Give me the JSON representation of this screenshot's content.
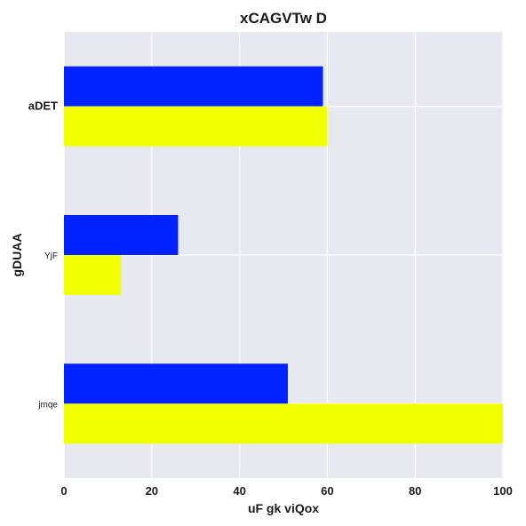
{
  "chart_data": {
    "type": "bar",
    "orientation": "horizontal",
    "title": "xCAGVTw D",
    "xlabel": "uF gk viQox",
    "ylabel": "gDUAA",
    "categories": [
      "aDET",
      "YjF",
      "jmqe"
    ],
    "category_label_bold": [
      true,
      false,
      false
    ],
    "series": [
      {
        "values": [
          59,
          26,
          51
        ],
        "color": "#0022ff"
      },
      {
        "values": [
          60,
          13,
          100
        ],
        "color": "#f2ff00"
      }
    ],
    "xlim": [
      0,
      100
    ],
    "xticks": [
      0,
      20,
      40,
      60,
      80,
      100
    ],
    "grid": true,
    "legend": "none",
    "background": "#e8e8f0",
    "grid_color": "#ffffff"
  }
}
